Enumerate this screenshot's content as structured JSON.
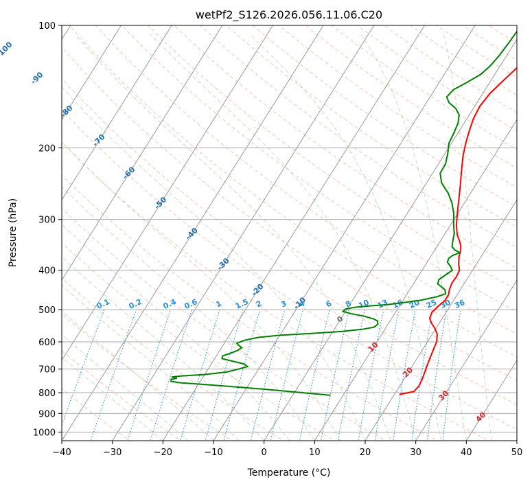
{
  "chart_data": {
    "type": "line",
    "title": "wetPf2_S126.2026.056.11.06.C20",
    "xlabel": "Temperature (°C)",
    "ylabel": "Pressure (hPa)",
    "xlim": [
      -40,
      50
    ],
    "ylim": [
      1050,
      100
    ],
    "x_ticks": [
      -40,
      -30,
      -20,
      -10,
      0,
      10,
      20,
      30,
      40,
      50
    ],
    "x_tick_labels": [
      "−40",
      "−30",
      "−20",
      "−10",
      "0",
      "10",
      "20",
      "30",
      "40",
      "50"
    ],
    "y_ticks": [
      1000,
      900,
      800,
      700,
      600,
      500,
      400,
      300,
      200,
      100
    ],
    "y_tick_labels": [
      "1000",
      "900",
      "800",
      "700",
      "600",
      "500",
      "400",
      "300",
      "200",
      "100"
    ],
    "isotherm_labels": [
      {
        "text": "-100",
        "t": -100,
        "p": 115
      },
      {
        "text": "-90",
        "t": -90,
        "p": 135
      },
      {
        "text": "-80",
        "t": -80,
        "p": 163
      },
      {
        "text": "-70",
        "t": -70,
        "p": 192
      },
      {
        "text": "-60",
        "t": -60,
        "p": 231
      },
      {
        "text": "-50",
        "t": -50,
        "p": 274
      },
      {
        "text": "-40",
        "t": -40,
        "p": 326
      },
      {
        "text": "-30",
        "t": -30,
        "p": 387
      },
      {
        "text": "-20",
        "t": -20,
        "p": 448
      },
      {
        "text": "-10",
        "t": -10,
        "p": 483
      },
      {
        "text": "0",
        "t": 0,
        "p": 529
      },
      {
        "text": "10",
        "t": 10,
        "p": 619
      },
      {
        "text": "20",
        "t": 20,
        "p": 714
      },
      {
        "text": "30",
        "t": 30,
        "p": 815
      },
      {
        "text": "40",
        "t": 40,
        "p": 920
      }
    ],
    "mixing_ratio_labels": [
      {
        "text": "0.1",
        "t": -22.8
      },
      {
        "text": "0.2",
        "t": -16.6
      },
      {
        "text": "0.4",
        "t": -9.9
      },
      {
        "text": "0.6",
        "t": -5.4
      },
      {
        "text": "1",
        "t": 0.3
      },
      {
        "text": "1.5",
        "t": 5.0
      },
      {
        "text": "2",
        "t": 8.2
      },
      {
        "text": "3",
        "t": 13.0
      },
      {
        "text": "4",
        "t": 16.4
      },
      {
        "text": "6",
        "t": 21.8
      },
      {
        "text": "8",
        "t": 25.6
      },
      {
        "text": "10",
        "t": 28.6
      },
      {
        "text": "13",
        "t": 32.3
      },
      {
        "text": "16",
        "t": 35.5
      },
      {
        "text": "20",
        "t": 39.0
      },
      {
        "text": "25",
        "t": 42.5
      },
      {
        "text": "30",
        "t": 45.5
      },
      {
        "text": "36",
        "t": 48.5
      }
    ],
    "series": [
      {
        "name": "Temperature",
        "color": "#ff0000",
        "points": [
          [
            21.0,
            808
          ],
          [
            23.5,
            795
          ],
          [
            23.8,
            770
          ],
          [
            23.6,
            740
          ],
          [
            23.2,
            710
          ],
          [
            22.8,
            680
          ],
          [
            22.3,
            640
          ],
          [
            21.8,
            600
          ],
          [
            21.0,
            575
          ],
          [
            19.8,
            556
          ],
          [
            18.5,
            540
          ],
          [
            17.5,
            525
          ],
          [
            17.2,
            508
          ],
          [
            17.6,
            492
          ],
          [
            18.3,
            475
          ],
          [
            18.3,
            460
          ],
          [
            17.8,
            445
          ],
          [
            17.5,
            430
          ],
          [
            17.6,
            415
          ],
          [
            17.4,
            400
          ],
          [
            16.4,
            385
          ],
          [
            15.6,
            370
          ],
          [
            15.2,
            358
          ],
          [
            14.6,
            348
          ],
          [
            13.7,
            338
          ],
          [
            12.6,
            328
          ],
          [
            11.2,
            310
          ],
          [
            9.9,
            290
          ],
          [
            8.6,
            270
          ],
          [
            7.2,
            250
          ],
          [
            5.6,
            230
          ],
          [
            4.0,
            211
          ],
          [
            2.9,
            196
          ],
          [
            2.0,
            182
          ],
          [
            1.3,
            170
          ],
          [
            1.0,
            158
          ],
          [
            1.4,
            147
          ],
          [
            2.3,
            138
          ],
          [
            3.2,
            130
          ],
          [
            4.0,
            124
          ],
          [
            5.2,
            117
          ],
          [
            6.0,
            110
          ],
          [
            6.8,
            104
          ],
          [
            7.3,
            100
          ]
        ]
      },
      {
        "name": "Dewpoint",
        "color": "#008000",
        "points": [
          [
            7.5,
            812
          ],
          [
            4.0,
            805
          ],
          [
            -1.0,
            795
          ],
          [
            -6.0,
            785
          ],
          [
            -12.0,
            775
          ],
          [
            -18.0,
            765
          ],
          [
            -24.0,
            756
          ],
          [
            -25.8,
            750
          ],
          [
            -26.0,
            742
          ],
          [
            -25.0,
            737
          ],
          [
            -26.2,
            732
          ],
          [
            -24.5,
            728
          ],
          [
            -20.0,
            722
          ],
          [
            -16.0,
            712
          ],
          [
            -14.0,
            700
          ],
          [
            -12.5,
            690
          ],
          [
            -13.5,
            680
          ],
          [
            -16.0,
            670
          ],
          [
            -18.5,
            660
          ],
          [
            -18.8,
            650
          ],
          [
            -17.5,
            640
          ],
          [
            -16.5,
            630
          ],
          [
            -16.0,
            620
          ],
          [
            -17.0,
            611
          ],
          [
            -17.5,
            605
          ],
          [
            -16.5,
            595
          ],
          [
            -14.0,
            585
          ],
          [
            -10.0,
            578
          ],
          [
            -4.0,
            572
          ],
          [
            1.5,
            566
          ],
          [
            5.5,
            559
          ],
          [
            7.6,
            552
          ],
          [
            8.0,
            543
          ],
          [
            7.5,
            533
          ],
          [
            6.5,
            527
          ],
          [
            4.0,
            518
          ],
          [
            1.5,
            512
          ],
          [
            -0.5,
            505
          ],
          [
            -0.3,
            498
          ],
          [
            1.5,
            493
          ],
          [
            4.5,
            489
          ],
          [
            7.5,
            486
          ],
          [
            10.5,
            480
          ],
          [
            13.5,
            474
          ],
          [
            16.2,
            465
          ],
          [
            17.6,
            457
          ],
          [
            17.0,
            447
          ],
          [
            16.0,
            440
          ],
          [
            14.8,
            432
          ],
          [
            14.5,
            422
          ],
          [
            15.3,
            410
          ],
          [
            16.0,
            400
          ],
          [
            15.0,
            390
          ],
          [
            14.0,
            382
          ],
          [
            13.8,
            374
          ],
          [
            14.2,
            368
          ],
          [
            15.3,
            362
          ],
          [
            14.0,
            357
          ],
          [
            13.0,
            350
          ],
          [
            12.5,
            340
          ],
          [
            11.8,
            325
          ],
          [
            10.5,
            308
          ],
          [
            9.2,
            290
          ],
          [
            7.5,
            273
          ],
          [
            5.5,
            258
          ],
          [
            3.0,
            244
          ],
          [
            1.5,
            231
          ],
          [
            1.4,
            219
          ],
          [
            0.5,
            206
          ],
          [
            -0.5,
            195
          ],
          [
            -0.8,
            184
          ],
          [
            -1.2,
            174
          ],
          [
            -2.0,
            166
          ],
          [
            -3.5,
            160
          ],
          [
            -5.5,
            155
          ],
          [
            -6.7,
            150
          ],
          [
            -6.3,
            144
          ],
          [
            -4.5,
            138
          ],
          [
            -2.8,
            132
          ],
          [
            -2.0,
            126
          ],
          [
            -1.5,
            119
          ],
          [
            -1.2,
            111
          ],
          [
            -1.0,
            104
          ],
          [
            -0.8,
            100
          ]
        ]
      }
    ]
  }
}
